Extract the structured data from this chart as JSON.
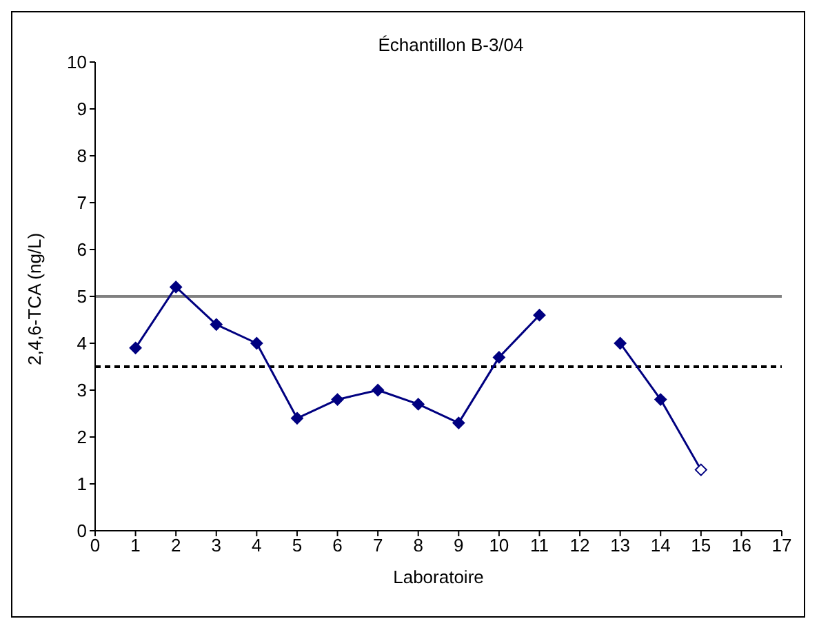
{
  "chart_data": {
    "type": "line",
    "title": "Échantillon B-3/04",
    "xlabel": "Laboratoire",
    "ylabel": "2,4,6-TCA (ng/L)",
    "x": [
      1,
      2,
      3,
      4,
      5,
      6,
      7,
      8,
      9,
      10,
      11,
      12,
      13,
      14,
      15
    ],
    "series": [
      {
        "color": "#000080",
        "values": [
          3.9,
          5.2,
          4.4,
          4.0,
          2.4,
          2.8,
          3.0,
          2.7,
          2.3,
          3.7,
          4.6,
          null,
          4.0,
          2.8,
          1.3
        ],
        "colors": [
          "#000080",
          "#000080",
          "#000080",
          "#000080",
          "#000080",
          "#000080",
          "#000080",
          "#000080",
          "#000080",
          "#000080",
          "#000080",
          "#000080",
          "#000080",
          "#000080",
          "#ffffff"
        ]
      }
    ],
    "xlim": [
      0,
      17
    ],
    "xticks": [
      0,
      1,
      2,
      3,
      4,
      5,
      6,
      7,
      8,
      9,
      10,
      11,
      12,
      13,
      14,
      15,
      16,
      17
    ],
    "ylim": [
      0,
      10
    ],
    "yticks": [
      0,
      1,
      2,
      3,
      4,
      5,
      6,
      7,
      8,
      9,
      10
    ],
    "ref_lines": [
      {
        "axis": "y",
        "value": 5,
        "color": "#808080",
        "line_style": "solid"
      },
      {
        "axis": "y",
        "value": 3.5,
        "color": "#000000",
        "line_style": "dashed"
      }
    ],
    "marker": "diamond",
    "line_style": "solid",
    "grid": false,
    "legend": false
  }
}
